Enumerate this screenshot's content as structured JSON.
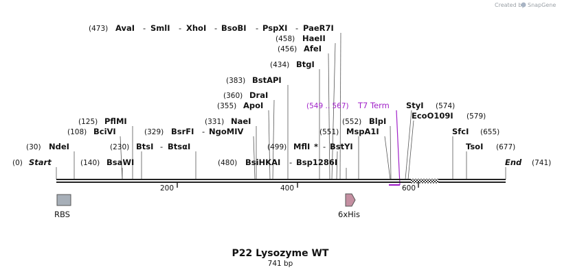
{
  "branding": {
    "created_by": "Created by",
    "product": "SnapGene"
  },
  "plasmid": {
    "name": "P22 Lysozyme WT",
    "length": "741 bp"
  },
  "sequence_ends": {
    "start": {
      "pos": "(0)",
      "label": "Start"
    },
    "end": {
      "label": "End",
      "pos": "(741)"
    }
  },
  "ruler": {
    "ticks": [
      "200",
      "400",
      "600"
    ]
  },
  "sites": {
    "ndei": {
      "pos": "(30)",
      "name": "NdeI"
    },
    "bsawi": {
      "pos": "(140)",
      "name": "BsaWI"
    },
    "bciv": {
      "pos": "(108)",
      "name": "BciVI"
    },
    "pflmi": {
      "pos": "(125)",
      "name": "PflMI"
    },
    "btsi": {
      "pos": "(230)",
      "name": "BtsI"
    },
    "btsal": {
      "name": "BtsαI"
    },
    "bsrfi": {
      "pos": "(329)",
      "name": "BsrFI"
    },
    "ngomiv": {
      "name": "NgoMIV"
    },
    "naei": {
      "pos": "(331)",
      "name": "NaeI"
    },
    "apoi": {
      "pos": "(355)",
      "name": "ApoI"
    },
    "drai": {
      "pos": "(360)",
      "name": "DraI"
    },
    "bstapi": {
      "pos": "(383)",
      "name": "BstAPI"
    },
    "btgi": {
      "pos": "(434)",
      "name": "BtgI"
    },
    "afei": {
      "pos": "(456)",
      "name": "AfeI"
    },
    "haeii": {
      "pos": "(458)",
      "name": "HaeII"
    },
    "group473": {
      "pos": "(473)",
      "names": [
        "AvaI",
        "SmlI",
        "XhoI",
        "BsoBI",
        "PspXI",
        "PaeR7I"
      ]
    },
    "bsihkai": {
      "pos": "(480)",
      "name": "BsiHKAI"
    },
    "bsp1286i": {
      "name": "Bsp1286I"
    },
    "mfli": {
      "pos": "(499)",
      "name": "MflI",
      "mark": "*"
    },
    "bstyi": {
      "name": "BstYI"
    },
    "mspa1i": {
      "pos": "(551)",
      "name": "MspA1I"
    },
    "blpi": {
      "pos": "(552)",
      "name": "BlpI"
    },
    "styi": {
      "name": "StyI",
      "pos": "(574)"
    },
    "eco0109i": {
      "name": "EcoO109I",
      "pos": "(579)"
    },
    "sfci": {
      "name": "SfcI",
      "pos": "(655)"
    },
    "tsoi": {
      "name": "TsoI",
      "pos": "(677)"
    }
  },
  "terminator": {
    "range": "(549 .. 567)",
    "name": "T7 Term"
  },
  "features": [
    {
      "name": "RBS",
      "color": "#a7afb8"
    },
    {
      "name": "6xHis",
      "color": "#c48fa1"
    }
  ],
  "colors": {
    "terminator": "#a020c8",
    "backbone": "#222222"
  }
}
